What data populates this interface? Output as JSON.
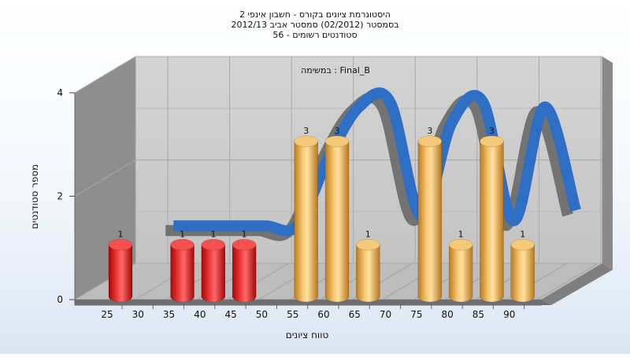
{
  "chart_data": {
    "type": "bar",
    "title_lines": [
      "היסטוגרמת ציונים בקורס - חשבון אינפי 2",
      "בסמסטר  (02/2012)  סמסטר אביב 2012/13",
      "סטודנטים רשומים - 56"
    ],
    "subtitle": "במשימה : Final_B",
    "xlabel": "טווח ציונים",
    "ylabel": "מספר סטודנטים",
    "x_ticks": [
      25,
      30,
      35,
      40,
      45,
      50,
      55,
      60,
      65,
      70,
      75,
      80,
      85,
      90
    ],
    "y_ticks": [
      0,
      2,
      4
    ],
    "ylim": [
      0,
      4
    ],
    "bars": [
      {
        "category": "25",
        "value": 1,
        "label": "1",
        "color": "#e01a1a"
      },
      {
        "category": "35",
        "value": 1,
        "label": "1",
        "color": "#e01a1a"
      },
      {
        "category": "40",
        "value": 1,
        "label": "1",
        "color": "#e01a1a"
      },
      {
        "category": "45",
        "value": 1,
        "label": "1",
        "color": "#e01a1a"
      },
      {
        "category": "55",
        "value": 3,
        "label": "3",
        "color": "#e8a640"
      },
      {
        "category": "60",
        "value": 3,
        "label": "3",
        "color": "#e8a640"
      },
      {
        "category": "65",
        "value": 1,
        "label": "1",
        "color": "#e8a640"
      },
      {
        "category": "75",
        "value": 3,
        "label": "3",
        "color": "#e8a640"
      },
      {
        "category": "80",
        "value": 1,
        "label": "1",
        "color": "#e8a640"
      },
      {
        "category": "85",
        "value": 3,
        "label": "3",
        "color": "#e8a640"
      },
      {
        "category": "90",
        "value": 1,
        "label": "1",
        "color": "#e8a640"
      }
    ],
    "curve": {
      "x": [
        30,
        35,
        40,
        45,
        50,
        55,
        60,
        65,
        70,
        75,
        80,
        85,
        90,
        95
      ],
      "values": [
        1,
        1,
        1,
        1,
        1,
        2.3,
        3.3,
        3.4,
        1.2,
        3.0,
        3.4,
        1.1,
        3.3,
        1.3
      ],
      "color": "#2e6ec4",
      "shadow_color": "#6e6e6e"
    },
    "grid": true,
    "legend": "none"
  }
}
